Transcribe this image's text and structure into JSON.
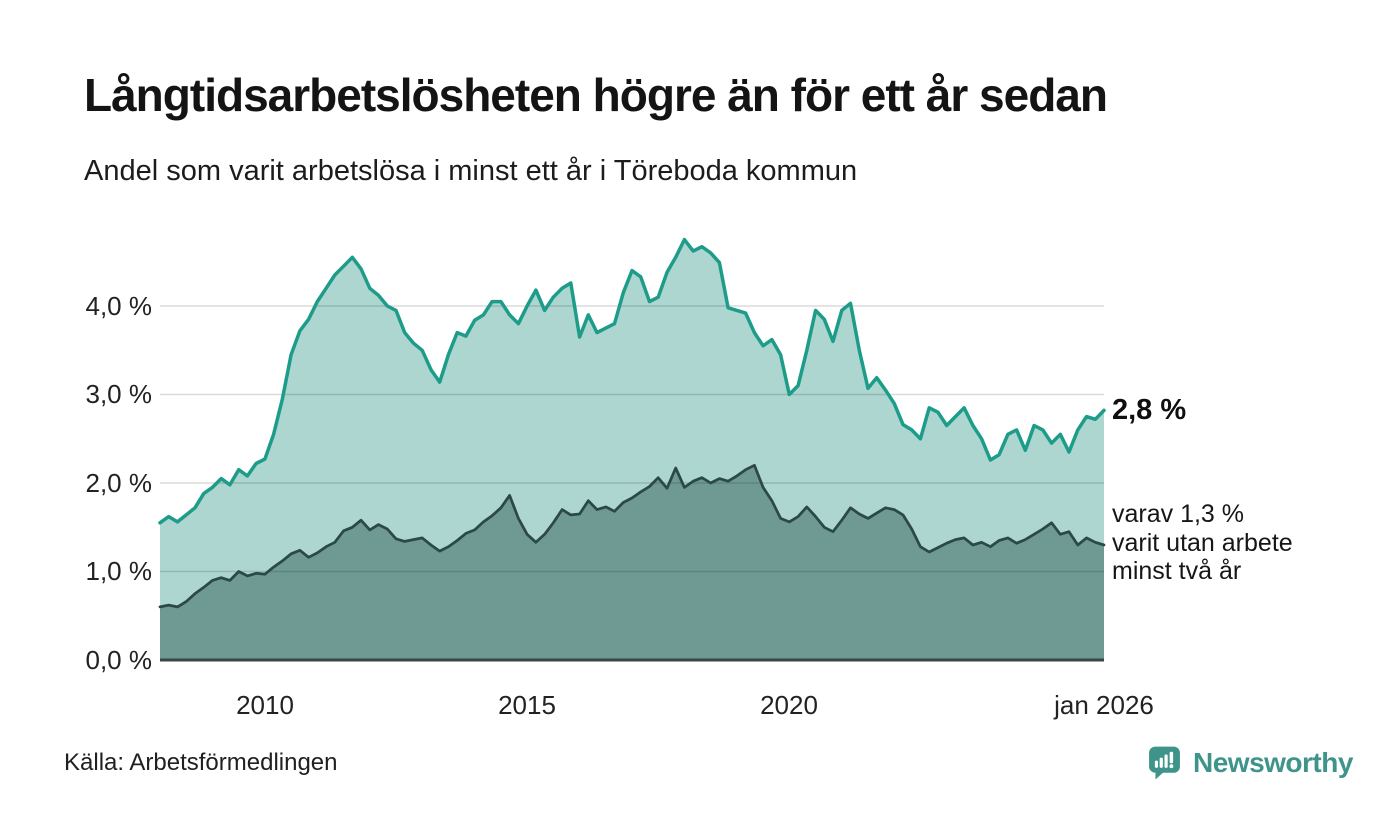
{
  "header": {
    "title": "Långtidsarbetslösheten högre än för ett år sedan",
    "subtitle": "Andel som varit arbetslösa i minst ett år i Töreboda kommun"
  },
  "footer": {
    "source": "Källa: Arbetsförmedlingen",
    "brand_name": "Newsworthy",
    "brand_color": "#3e948b"
  },
  "chart_data": {
    "type": "area",
    "title": "Långtidsarbetslösheten högre än för ett år sedan",
    "subtitle": "Andel som varit arbetslösa i minst ett år i Töreboda kommun",
    "x_unit": "year",
    "x_start_year": 2008,
    "x_end_year": 2026,
    "points_per_year": 6,
    "xlim": [
      2008,
      2026
    ],
    "ylim": [
      0,
      4.75
    ],
    "grid": true,
    "legend": "none",
    "grid_color": "rgba(0,0,0,0.14)",
    "baseline_color": "#3a4642",
    "yticks": [
      {
        "value": 0,
        "label": "0,0 %"
      },
      {
        "value": 1,
        "label": "1,0 %"
      },
      {
        "value": 2,
        "label": "2,0 %"
      },
      {
        "value": 3,
        "label": "3,0 %"
      },
      {
        "value": 4,
        "label": "4,0 %"
      }
    ],
    "xticks": [
      {
        "value": 2010,
        "label": "2010"
      },
      {
        "value": 2015,
        "label": "2015"
      },
      {
        "value": 2020,
        "label": "2020"
      },
      {
        "value": 2026,
        "label": "jan 2026"
      }
    ],
    "series": [
      {
        "name": "Andel som varit arbetslösa i minst ett år",
        "color": "#1e9c8a",
        "fill": "#aed6d0",
        "last_value": 2.8,
        "values": [
          1.55,
          1.62,
          1.56,
          1.64,
          1.72,
          1.88,
          1.95,
          2.05,
          1.98,
          2.15,
          2.08,
          2.22,
          2.27,
          2.55,
          2.95,
          3.45,
          3.72,
          3.85,
          4.05,
          4.2,
          4.35,
          4.45,
          4.55,
          4.42,
          4.2,
          4.12,
          4.0,
          3.95,
          3.7,
          3.58,
          3.5,
          3.28,
          3.14,
          3.45,
          3.7,
          3.66,
          3.84,
          3.9,
          4.05,
          4.05,
          3.9,
          3.8,
          4.0,
          4.18,
          3.95,
          4.1,
          4.2,
          4.26,
          3.65,
          3.9,
          3.7,
          3.75,
          3.8,
          4.15,
          4.4,
          4.33,
          4.05,
          4.1,
          4.38,
          4.55,
          4.75,
          4.62,
          4.67,
          4.6,
          4.49,
          3.98,
          3.95,
          3.92,
          3.7,
          3.55,
          3.62,
          3.45,
          3.0,
          3.1,
          3.5,
          3.95,
          3.85,
          3.6,
          3.95,
          4.03,
          3.5,
          3.07,
          3.19,
          3.05,
          2.9,
          2.66,
          2.6,
          2.5,
          2.85,
          2.8,
          2.65,
          2.75,
          2.85,
          2.65,
          2.5,
          2.26,
          2.32,
          2.55,
          2.6,
          2.37,
          2.65,
          2.6,
          2.45,
          2.55,
          2.35,
          2.6,
          2.75,
          2.72,
          2.82
        ]
      },
      {
        "name": "Varav utan arbete minst två år",
        "color": "#2b4945",
        "fill": "#6f9a94",
        "last_value": 1.3,
        "values": [
          0.6,
          0.62,
          0.6,
          0.66,
          0.75,
          0.82,
          0.9,
          0.93,
          0.9,
          1.0,
          0.95,
          0.98,
          0.97,
          1.05,
          1.12,
          1.2,
          1.24,
          1.16,
          1.21,
          1.28,
          1.33,
          1.46,
          1.5,
          1.58,
          1.47,
          1.53,
          1.48,
          1.37,
          1.34,
          1.36,
          1.38,
          1.3,
          1.23,
          1.28,
          1.35,
          1.43,
          1.47,
          1.56,
          1.63,
          1.72,
          1.86,
          1.6,
          1.42,
          1.33,
          1.42,
          1.55,
          1.7,
          1.64,
          1.65,
          1.8,
          1.7,
          1.73,
          1.68,
          1.78,
          1.83,
          1.9,
          1.96,
          2.06,
          1.94,
          2.17,
          1.95,
          2.02,
          2.06,
          2.0,
          2.05,
          2.02,
          2.08,
          2.15,
          2.2,
          1.95,
          1.8,
          1.6,
          1.56,
          1.62,
          1.73,
          1.62,
          1.5,
          1.45,
          1.58,
          1.72,
          1.65,
          1.6,
          1.66,
          1.72,
          1.7,
          1.64,
          1.48,
          1.28,
          1.22,
          1.27,
          1.32,
          1.36,
          1.38,
          1.3,
          1.33,
          1.28,
          1.35,
          1.38,
          1.32,
          1.36,
          1.42,
          1.48,
          1.55,
          1.42,
          1.45,
          1.3,
          1.38,
          1.33,
          1.3
        ]
      }
    ],
    "annotations": {
      "last_value_label": "2,8 %",
      "secondary_lines": [
        "varav 1,3 %",
        "varit utan arbete",
        "minst två år"
      ]
    }
  }
}
